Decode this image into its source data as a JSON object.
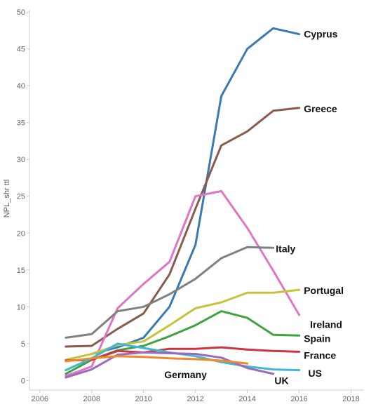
{
  "chart_data": {
    "type": "line",
    "ylabel": "NPL_shr ttl",
    "xlabel": "",
    "xlim": [
      2005.6,
      2018.5
    ],
    "ylim": [
      -1.3,
      50.3
    ],
    "x_ticks": [
      "2006",
      "2008",
      "2010",
      "2012",
      "2014",
      "2016",
      "2018"
    ],
    "y_ticks": [
      "0",
      "5",
      "10",
      "15",
      "20",
      "25",
      "30",
      "35",
      "40",
      "45",
      "50"
    ],
    "grid": false,
    "series": [
      {
        "name": "Cyprus",
        "color": "#3a7ab0",
        "x": [
          2008,
          2009,
          2010,
          2011,
          2012,
          2013,
          2014,
          2015,
          2016
        ],
        "y": [
          3.6,
          4.5,
          5.8,
          10.0,
          18.4,
          38.6,
          45.0,
          47.8,
          47.0
        ]
      },
      {
        "name": "Greece",
        "color": "#8a5a4d",
        "x": [
          2007,
          2008,
          2009,
          2010,
          2011,
          2012,
          2013,
          2014,
          2015,
          2016
        ],
        "y": [
          4.6,
          4.7,
          7.0,
          9.1,
          14.4,
          23.3,
          31.9,
          33.8,
          36.6,
          37.0
        ]
      },
      {
        "name": "Ireland",
        "color": "#df76c4",
        "x": [
          2007,
          2008,
          2009,
          2010,
          2011,
          2012,
          2013,
          2014,
          2015,
          2016
        ],
        "y": [
          0.6,
          1.9,
          9.8,
          13.1,
          16.1,
          25.0,
          25.7,
          20.7,
          14.9,
          8.9
        ]
      },
      {
        "name": "Italy",
        "color": "#808080",
        "x": [
          2007,
          2008,
          2009,
          2010,
          2011,
          2012,
          2013,
          2014,
          2015
        ],
        "y": [
          5.8,
          6.3,
          9.4,
          10.0,
          11.7,
          13.8,
          16.6,
          18.1,
          18.0
        ]
      },
      {
        "name": "Portugal",
        "color": "#c4c43c",
        "x": [
          2007,
          2008,
          2009,
          2010,
          2011,
          2012,
          2013,
          2014,
          2015,
          2016
        ],
        "y": [
          2.8,
          3.6,
          4.8,
          5.3,
          7.5,
          9.8,
          10.6,
          11.9,
          11.9,
          12.3
        ]
      },
      {
        "name": "Spain",
        "color": "#3da33d",
        "x": [
          2007,
          2008,
          2009,
          2010,
          2011,
          2012,
          2013,
          2014,
          2015,
          2016
        ],
        "y": [
          0.9,
          2.8,
          4.1,
          4.7,
          6.0,
          7.5,
          9.4,
          8.5,
          6.2,
          6.1
        ]
      },
      {
        "name": "France",
        "color": "#cf3340",
        "x": [
          2007,
          2008,
          2009,
          2010,
          2011,
          2012,
          2013,
          2014,
          2015,
          2016
        ],
        "y": [
          2.7,
          2.8,
          4.0,
          3.8,
          4.3,
          4.3,
          4.5,
          4.2,
          4.0,
          3.9
        ]
      },
      {
        "name": "US",
        "color": "#41b8d3",
        "x": [
          2007,
          2008,
          2009,
          2010,
          2011,
          2012,
          2013,
          2014,
          2015,
          2016
        ],
        "y": [
          1.4,
          3.0,
          5.0,
          4.4,
          3.8,
          3.3,
          2.5,
          1.9,
          1.5,
          1.4
        ]
      },
      {
        "name": "UK",
        "color": "#9a6ac1",
        "x": [
          2007,
          2008,
          2009,
          2010,
          2011,
          2012,
          2013,
          2014,
          2015
        ],
        "y": [
          0.4,
          1.5,
          3.5,
          3.8,
          3.7,
          3.6,
          3.1,
          1.7,
          0.9
        ]
      },
      {
        "name": "Germany",
        "color": "#f0892a",
        "x": [
          2007,
          2008,
          2009,
          2010,
          2011,
          2012,
          2013,
          2014
        ],
        "y": [
          2.6,
          3.0,
          3.3,
          3.2,
          3.0,
          2.9,
          2.7,
          2.3
        ]
      }
    ],
    "annotations": [
      {
        "text": "Cyprus",
        "x": 2016.18,
        "y": 47.0
      },
      {
        "text": "Greece",
        "x": 2016.18,
        "y": 36.9
      },
      {
        "text": "Italy",
        "x": 2015.1,
        "y": 17.9
      },
      {
        "text": "Portugal",
        "x": 2016.18,
        "y": 12.2
      },
      {
        "text": "Ireland",
        "x": 2016.42,
        "y": 7.6
      },
      {
        "text": "Spain",
        "x": 2016.18,
        "y": 5.7
      },
      {
        "text": "France",
        "x": 2016.18,
        "y": 3.4
      },
      {
        "text": "US",
        "x": 2016.35,
        "y": 1.0
      },
      {
        "text": "UK",
        "x": 2015.05,
        "y": 0.0
      },
      {
        "text": "Germany",
        "x": 2010.8,
        "y": 0.8
      }
    ]
  }
}
